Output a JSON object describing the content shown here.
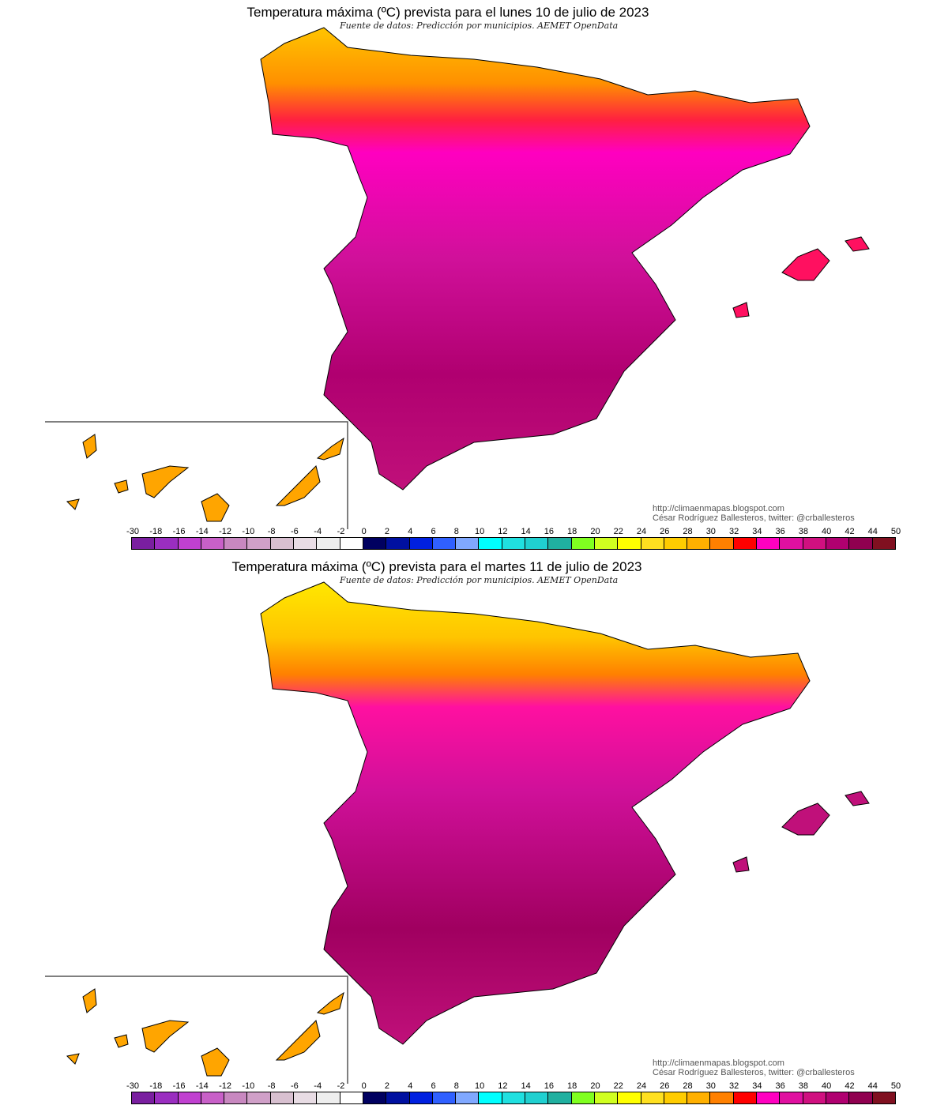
{
  "maps": [
    {
      "title": "Temperatura máxima (ºC) prevista para el lunes 10 de julio de 2023",
      "source": "Fuente de datos: Predicción por municipios. AEMET OpenData",
      "credit_url": "http://climaenmapas.blogspot.com",
      "credit_author": "César Rodríguez Ballesteros, twitter: @crballesteros"
    },
    {
      "title": "Temperatura máxima (ºC) prevista para el martes 11 de julio de 2023",
      "source": "Fuente de datos: Predicción por municipios. AEMET OpenData",
      "credit_url": "http://climaenmapas.blogspot.com",
      "credit_author": "César Rodríguez Ballesteros, twitter: @crballesteros"
    }
  ],
  "legend": {
    "unit": "ºC",
    "labels": [
      "-30",
      "-18",
      "-16",
      "-14",
      "-12",
      "-10",
      "-8",
      "-6",
      "-4",
      "-2",
      "0",
      "2",
      "4",
      "6",
      "8",
      "10",
      "12",
      "14",
      "16",
      "18",
      "20",
      "22",
      "24",
      "26",
      "28",
      "30",
      "32",
      "34",
      "36",
      "38",
      "40",
      "42",
      "44",
      "50"
    ],
    "colors": [
      "#7a1fa0",
      "#9a2ec0",
      "#c040d0",
      "#c860c8",
      "#c888c0",
      "#d0a0c8",
      "#d8c0d0",
      "#e8dce4",
      "#eeeeee",
      "#ffffff",
      "#000060",
      "#0010a0",
      "#0020e0",
      "#3060ff",
      "#80a8ff",
      "#00ffff",
      "#20e0e0",
      "#20d0d0",
      "#20b0a0",
      "#80ff20",
      "#d0ff20",
      "#ffff00",
      "#ffe020",
      "#ffcc00",
      "#ffb000",
      "#ff8000",
      "#ff0000",
      "#ff00c0",
      "#e010a0",
      "#d01080",
      "#b00070",
      "#900050",
      "#801020"
    ]
  }
}
